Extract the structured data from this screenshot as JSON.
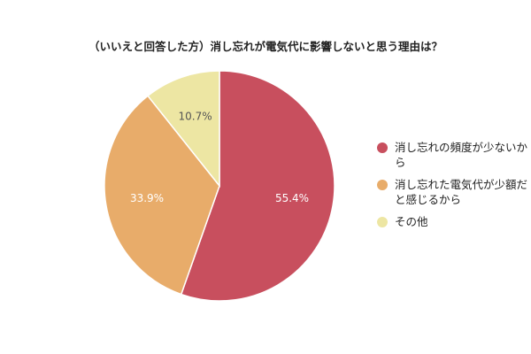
{
  "chart_data": {
    "type": "pie",
    "title": "（いいえと回答した方）消し忘れが電気代に影響しないと思う理由は？",
    "slices": [
      {
        "label": "消し忘れの頻度が少ないから",
        "value": 55.4,
        "value_label": "55.4%",
        "color": "#c84f5e"
      },
      {
        "label": "消し忘れた電気代が少額だと感じるから",
        "value": 33.9,
        "value_label": "33.9%",
        "color": "#e8ac6a"
      },
      {
        "label": "その他",
        "value": 10.7,
        "value_label": "10.7%",
        "color": "#ede6a3"
      }
    ],
    "legend_position": "right",
    "start_angle": "top",
    "direction": "clockwise"
  }
}
